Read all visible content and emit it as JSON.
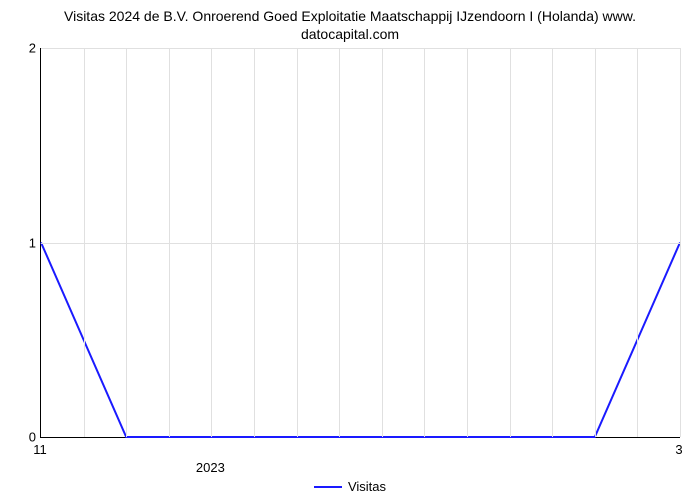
{
  "chart": {
    "type": "line",
    "title_line1": "Visitas 2024 de B.V. Onroerend Goed Exploitatie Maatschappij IJzendoorn I (Holanda) www.",
    "title_line2": "datocapital.com",
    "title_fontsize": 14,
    "title_color": "#000000",
    "background_color": "#ffffff",
    "grid_color": "#e0e0e0",
    "axis_color": "#000000",
    "ylim": [
      0,
      2
    ],
    "yticks": [
      0,
      1,
      2
    ],
    "ytick_labels": [
      "0",
      "1",
      "2"
    ],
    "x_n": 16,
    "xtick_labels_row1": {
      "0": "11",
      "15": "3"
    },
    "xtick_labels_row2": {
      "4": "2023"
    },
    "label_fontsize": 13,
    "series": {
      "name": "Visitas",
      "color": "#1a1aff",
      "width": 2,
      "x": [
        0,
        1,
        2,
        3,
        4,
        5,
        6,
        7,
        8,
        9,
        10,
        11,
        12,
        13,
        14,
        15
      ],
      "y": [
        1,
        0.5,
        0,
        0,
        0,
        0,
        0,
        0,
        0,
        0,
        0,
        0,
        0,
        0,
        0.5,
        1
      ]
    },
    "legend_label": "Visitas"
  }
}
